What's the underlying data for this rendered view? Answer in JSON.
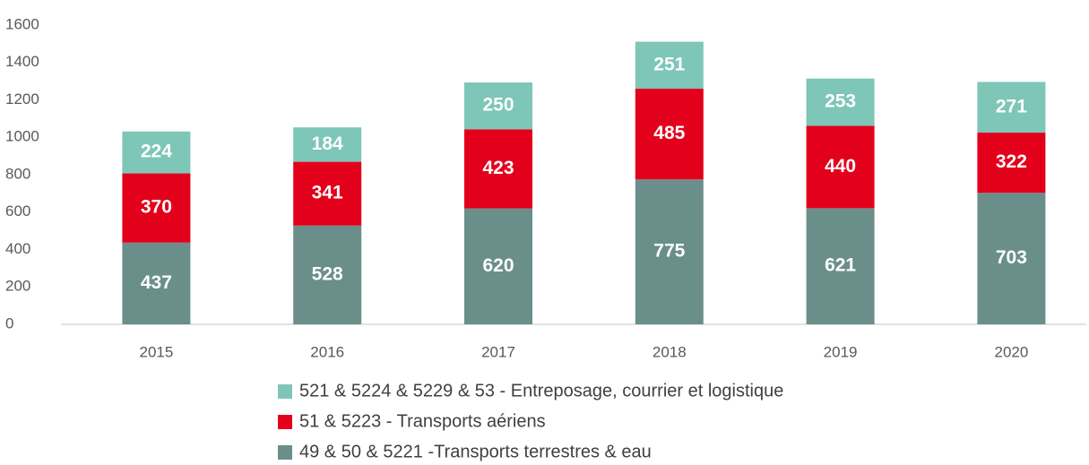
{
  "chart_data": {
    "type": "stacked_bar",
    "categories": [
      "2015",
      "2016",
      "2017",
      "2018",
      "2019",
      "2020"
    ],
    "series": [
      {
        "name": "49 & 50 & 5221 -Transports terrestres & eau",
        "color": "#6a8f8b",
        "values": [
          437,
          528,
          620,
          775,
          621,
          703
        ]
      },
      {
        "name": "51 & 5223 - Transports aériens",
        "color": "#e3001b",
        "values": [
          370,
          341,
          423,
          485,
          440,
          322
        ]
      },
      {
        "name": "521 & 5224 & 5229 & 53 - Entreposage, courrier et logistique",
        "color": "#7dc6b8",
        "values": [
          224,
          184,
          250,
          251,
          253,
          271
        ]
      }
    ],
    "ylim": [
      0,
      1600
    ],
    "yticks": [
      0,
      200,
      400,
      600,
      800,
      1000,
      1200,
      1400,
      1600
    ],
    "legend": "bottom"
  }
}
